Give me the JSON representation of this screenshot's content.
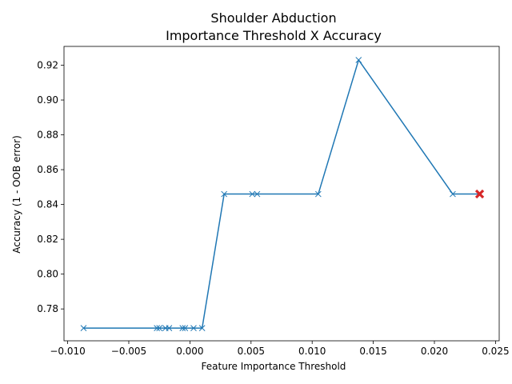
{
  "chart_data": {
    "type": "line",
    "title": "Shoulder Abduction",
    "subtitle": "Importance Threshold X Accuracy",
    "xlabel": "Feature Importance Threshold",
    "ylabel": "Accuracy (1 - OOB error)",
    "xlim": [
      -0.0103,
      0.0253
    ],
    "ylim": [
      0.7617,
      0.9308
    ],
    "xticks": [
      -0.01,
      -0.005,
      0.0,
      0.005,
      0.01,
      0.015,
      0.02,
      0.025
    ],
    "xtick_labels": [
      "−0.010",
      "−0.005",
      "0.000",
      "0.005",
      "0.010",
      "0.015",
      "0.020",
      "0.025"
    ],
    "yticks": [
      0.78,
      0.8,
      0.82,
      0.84,
      0.86,
      0.88,
      0.9,
      0.92
    ],
    "ytick_labels": [
      "0.78",
      "0.80",
      "0.82",
      "0.84",
      "0.86",
      "0.88",
      "0.90",
      "0.92"
    ],
    "grid": false,
    "series": [
      {
        "marker": "x",
        "color": "#1f77b4",
        "x": [
          -0.0087,
          -0.0027,
          -0.0025,
          -0.002,
          -0.0017,
          -0.0006,
          -0.0004,
          0.0003,
          0.001,
          0.0028,
          0.0051,
          0.0055,
          0.0105,
          0.0138,
          0.0215,
          0.0237
        ],
        "y": [
          0.769,
          0.769,
          0.769,
          0.769,
          0.769,
          0.769,
          0.769,
          0.769,
          0.769,
          0.846,
          0.846,
          0.846,
          0.846,
          0.923,
          0.846,
          0.846
        ]
      },
      {
        "marker": "X",
        "color": "#d62728",
        "x": [
          0.0237
        ],
        "y": [
          0.846
        ]
      }
    ]
  }
}
